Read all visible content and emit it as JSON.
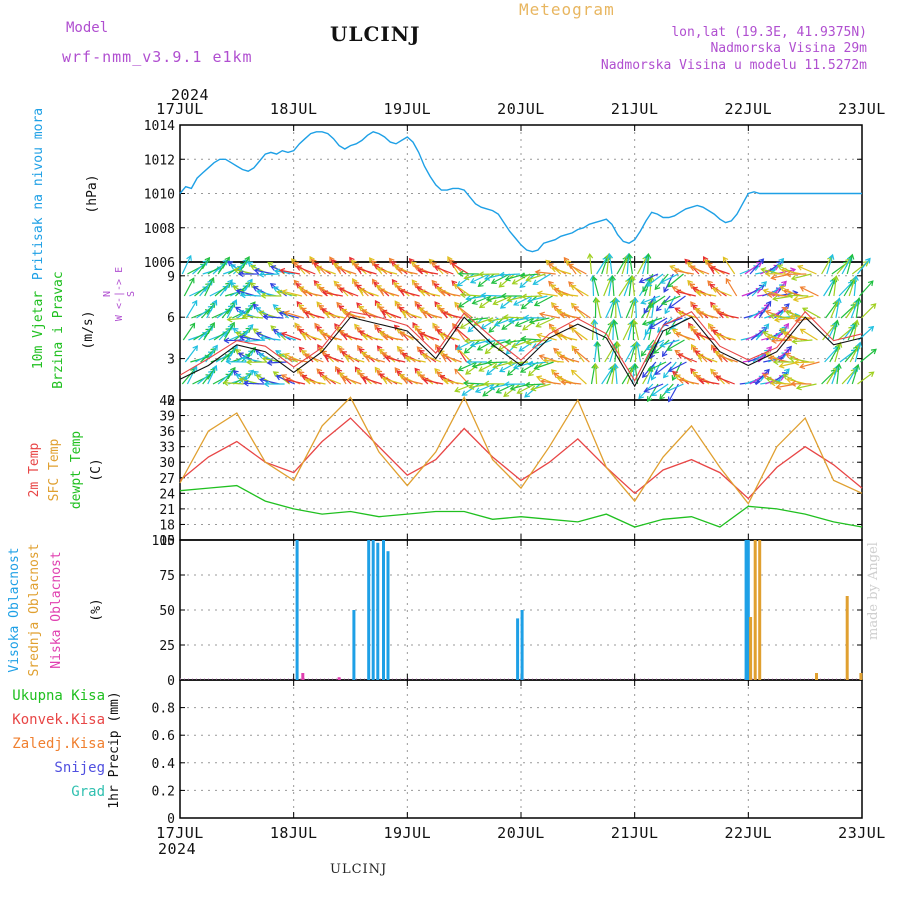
{
  "header": {
    "model_label": "Model",
    "model_name": "wrf-nmm_v3.9.1 e1km",
    "station": "ULCINJ",
    "meteogram": "Meteogram",
    "coords": "lon,lat (19.3E, 41.9375N)",
    "elevation": "Nadmorska Visina 29m",
    "model_elevation": "Nadmorska Visina u modelu 11.5272m",
    "watermark": "made by Angel",
    "footer_station": "ULCINJ"
  },
  "colors": {
    "pressure": "#1ea0e6",
    "temp2m": "#e84646",
    "sfc_temp": "#e0a030",
    "dewpoint": "#20c020",
    "high_cloud": "#1ea0e6",
    "mid_cloud": "#e0a030",
    "low_cloud": "#e040b0",
    "purple_text": "#b04fd0"
  },
  "time_axis": {
    "year": "2024",
    "dates": [
      "17JUL",
      "18JUL",
      "19JUL",
      "20JUL",
      "21JUL",
      "22JUL",
      "23JUL"
    ]
  },
  "chart_data": [
    {
      "type": "line",
      "name": "pressure",
      "ylabel": [
        "Pritisak na nivou mora",
        "(hPa)"
      ],
      "ylim": [
        1006,
        1014
      ],
      "yticks": [
        "1006",
        "1008",
        "1010",
        "1012",
        "1014"
      ],
      "x": [
        0,
        0.05,
        0.1,
        0.15,
        0.2,
        0.25,
        0.3,
        0.35,
        0.4,
        0.45,
        0.5,
        0.55,
        0.6,
        0.65,
        0.7,
        0.75,
        0.8,
        0.85,
        0.9,
        0.95,
        1.0,
        1.05,
        1.1,
        1.15,
        1.2,
        1.25,
        1.3,
        1.35,
        1.4,
        1.45,
        1.5,
        1.55,
        1.6,
        1.65,
        1.7,
        1.75,
        1.8,
        1.85,
        1.9,
        1.95,
        2.0,
        2.05,
        2.1,
        2.15,
        2.2,
        2.25,
        2.3,
        2.35,
        2.4,
        2.45,
        2.5,
        2.55,
        2.6,
        2.65,
        2.7,
        2.75,
        2.8,
        2.85,
        2.9,
        2.95,
        3.0,
        3.05,
        3.1,
        3.15,
        3.2,
        3.25,
        3.3,
        3.35,
        3.4,
        3.45,
        3.5,
        3.55,
        3.6,
        3.65,
        3.7,
        3.75,
        3.8,
        3.85,
        3.9,
        3.95,
        4.0,
        4.05,
        4.1,
        4.15,
        4.2,
        4.25,
        4.3,
        4.35,
        4.4,
        4.45,
        4.5,
        4.55,
        4.6,
        4.65,
        4.7,
        4.75,
        4.8,
        4.85,
        4.9,
        4.95,
        5.0,
        5.05,
        5.1,
        5.15,
        5.2,
        5.25,
        5.3,
        5.35,
        5.4,
        5.45,
        5.5,
        5.55,
        5.6,
        5.65,
        5.7,
        5.75,
        5.8,
        5.85,
        5.9,
        5.95,
        6.0
      ],
      "values": [
        1010.0,
        1010.4,
        1010.3,
        1010.9,
        1011.2,
        1011.5,
        1011.8,
        1012.0,
        1012.0,
        1011.8,
        1011.6,
        1011.4,
        1011.3,
        1011.5,
        1011.9,
        1012.3,
        1012.4,
        1012.3,
        1012.5,
        1012.4,
        1012.5,
        1012.9,
        1013.2,
        1013.5,
        1013.6,
        1013.6,
        1013.5,
        1013.2,
        1012.8,
        1012.6,
        1012.8,
        1012.9,
        1013.1,
        1013.4,
        1013.6,
        1013.5,
        1013.3,
        1013.0,
        1012.9,
        1013.1,
        1013.3,
        1013.0,
        1012.4,
        1011.6,
        1011.0,
        1010.5,
        1010.2,
        1010.2,
        1010.3,
        1010.3,
        1010.2,
        1009.8,
        1009.4,
        1009.2,
        1009.1,
        1009.0,
        1008.8,
        1008.3,
        1007.8,
        1007.4,
        1007.0,
        1006.7,
        1006.6,
        1006.7,
        1007.1,
        1007.2,
        1007.3,
        1007.5,
        1007.6,
        1007.7,
        1007.9,
        1008.0,
        1008.2,
        1008.3,
        1008.4,
        1008.5,
        1008.2,
        1007.6,
        1007.2,
        1007.1,
        1007.3,
        1007.8,
        1008.4,
        1008.9,
        1008.8,
        1008.6,
        1008.6,
        1008.7,
        1008.9,
        1009.1,
        1009.2,
        1009.3,
        1009.2,
        1009.0,
        1008.8,
        1008.5,
        1008.3,
        1008.4,
        1008.8,
        1009.4,
        1010.0,
        1010.1,
        1010.0,
        1010.0,
        1010.0,
        1010.0,
        1010.0,
        1010.0,
        1010.0,
        1010.0,
        1010.0,
        1010.0,
        1010.0,
        1010.0,
        1010.0,
        1010.0,
        1010.0,
        1010.0,
        1010.0,
        1010.0,
        1010.0
      ]
    },
    {
      "type": "line",
      "name": "wind",
      "ylabel": [
        "10m Vjetar",
        "Brzina i Pravac",
        "(m/s)"
      ],
      "direction_legend": [
        "N",
        "W <-|-> E",
        "S"
      ],
      "ylim": [
        0,
        10
      ],
      "yticks": [
        "0",
        "3",
        "6",
        "9"
      ],
      "x": [
        0,
        0.25,
        0.5,
        0.75,
        1.0,
        1.25,
        1.5,
        1.75,
        2.0,
        2.25,
        2.5,
        2.75,
        3.0,
        3.25,
        3.5,
        3.75,
        4.0,
        4.25,
        4.5,
        4.75,
        5.0,
        5.25,
        5.5,
        5.75,
        6.0
      ],
      "speed": [
        1.5,
        2.5,
        4.0,
        3.5,
        2.0,
        3.5,
        6.0,
        5.5,
        5.0,
        3.0,
        6.0,
        4.0,
        2.5,
        4.5,
        5.5,
        4.5,
        1.0,
        5.0,
        6.0,
        3.5,
        2.5,
        3.5,
        6.0,
        4.0,
        4.5
      ],
      "gust": [
        1.8,
        3.0,
        4.3,
        3.9,
        2.4,
        3.8,
        6.4,
        6.0,
        5.4,
        3.4,
        6.3,
        4.5,
        2.9,
        4.8,
        5.9,
        4.8,
        1.4,
        5.4,
        6.4,
        3.9,
        2.9,
        3.8,
        6.4,
        4.3,
        4.8
      ]
    },
    {
      "type": "line",
      "name": "temperature",
      "ylabel": [
        "2m Temp",
        "SFC Temp",
        "dewpt Temp",
        "(C)"
      ],
      "ylim": [
        15,
        42
      ],
      "yticks": [
        "15",
        "18",
        "21",
        "24",
        "27",
        "30",
        "33",
        "36",
        "39",
        "42"
      ],
      "x": [
        0,
        0.25,
        0.5,
        0.75,
        1.0,
        1.25,
        1.5,
        1.75,
        2.0,
        2.25,
        2.5,
        2.75,
        3.0,
        3.25,
        3.5,
        3.75,
        4.0,
        4.25,
        4.5,
        4.75,
        5.0,
        5.25,
        5.5,
        5.75,
        6.0
      ],
      "series": [
        {
          "name": "2m Temp",
          "values": [
            26.5,
            31.0,
            34.0,
            30.0,
            28.0,
            34.0,
            38.5,
            33.0,
            27.5,
            30.5,
            36.5,
            31.0,
            26.5,
            30.0,
            34.5,
            29.0,
            24.0,
            28.5,
            30.5,
            28.0,
            23.0,
            29.0,
            33.0,
            29.5,
            25.0
          ]
        },
        {
          "name": "SFC Temp",
          "values": [
            26.0,
            36.0,
            39.5,
            30.0,
            26.5,
            37.0,
            42.5,
            32.0,
            25.5,
            32.0,
            42.5,
            30.5,
            25.0,
            33.0,
            42.0,
            29.0,
            22.5,
            31.0,
            37.0,
            29.0,
            22.0,
            33.0,
            38.5,
            26.5,
            24.0
          ]
        },
        {
          "name": "dewpt Temp",
          "values": [
            24.5,
            25.0,
            25.5,
            22.5,
            21.0,
            20.0,
            20.5,
            19.5,
            20.0,
            20.5,
            20.5,
            19.0,
            19.5,
            19.0,
            18.5,
            20.0,
            17.5,
            19.0,
            19.5,
            17.5,
            21.5,
            21.0,
            20.0,
            18.5,
            17.5
          ]
        }
      ]
    },
    {
      "type": "bar",
      "name": "cloud",
      "ylabel": [
        "Visoka Oblacnost",
        "Srednja Oblacnost",
        "Niska Oblacnost",
        "(%)"
      ],
      "ylim": [
        0,
        100
      ],
      "yticks": [
        "0",
        "25",
        "50",
        "75",
        "100"
      ],
      "series": [
        {
          "name": "Visoka Oblacnost",
          "x": [
            1.03,
            1.53,
            1.66,
            1.7,
            1.74,
            1.79,
            1.83,
            2.97,
            3.01,
            4.98,
            5.0
          ],
          "values": [
            100,
            50,
            100,
            100,
            98,
            100,
            92,
            44,
            50,
            100,
            100
          ]
        },
        {
          "name": "Srednja Oblacnost",
          "x": [
            5.02,
            5.06,
            5.1,
            5.6,
            5.87,
            5.99
          ],
          "values": [
            45,
            100,
            100,
            5,
            60,
            5
          ]
        },
        {
          "name": "Niska Oblacnost",
          "x": [
            1.08,
            1.4
          ],
          "values": [
            5,
            2
          ]
        }
      ]
    },
    {
      "type": "bar",
      "name": "precipitation",
      "ylabel": [
        "1hr Precip",
        "(mm)"
      ],
      "legend": [
        "Ukupna Kisa",
        "Konvek.Kisa",
        "Zaledj.Kisa",
        "Snijeg",
        "Grad"
      ],
      "ylim": [
        0,
        1
      ],
      "yticks": [
        "0",
        "0.2",
        "0.4",
        "0.6",
        "0.8"
      ],
      "series": [
        {
          "name": "Ukupna Kisa",
          "values": []
        },
        {
          "name": "Konvek.Kisa",
          "values": []
        },
        {
          "name": "Zaledj.Kisa",
          "values": []
        },
        {
          "name": "Snijeg",
          "values": []
        },
        {
          "name": "Grad",
          "values": []
        }
      ]
    }
  ]
}
